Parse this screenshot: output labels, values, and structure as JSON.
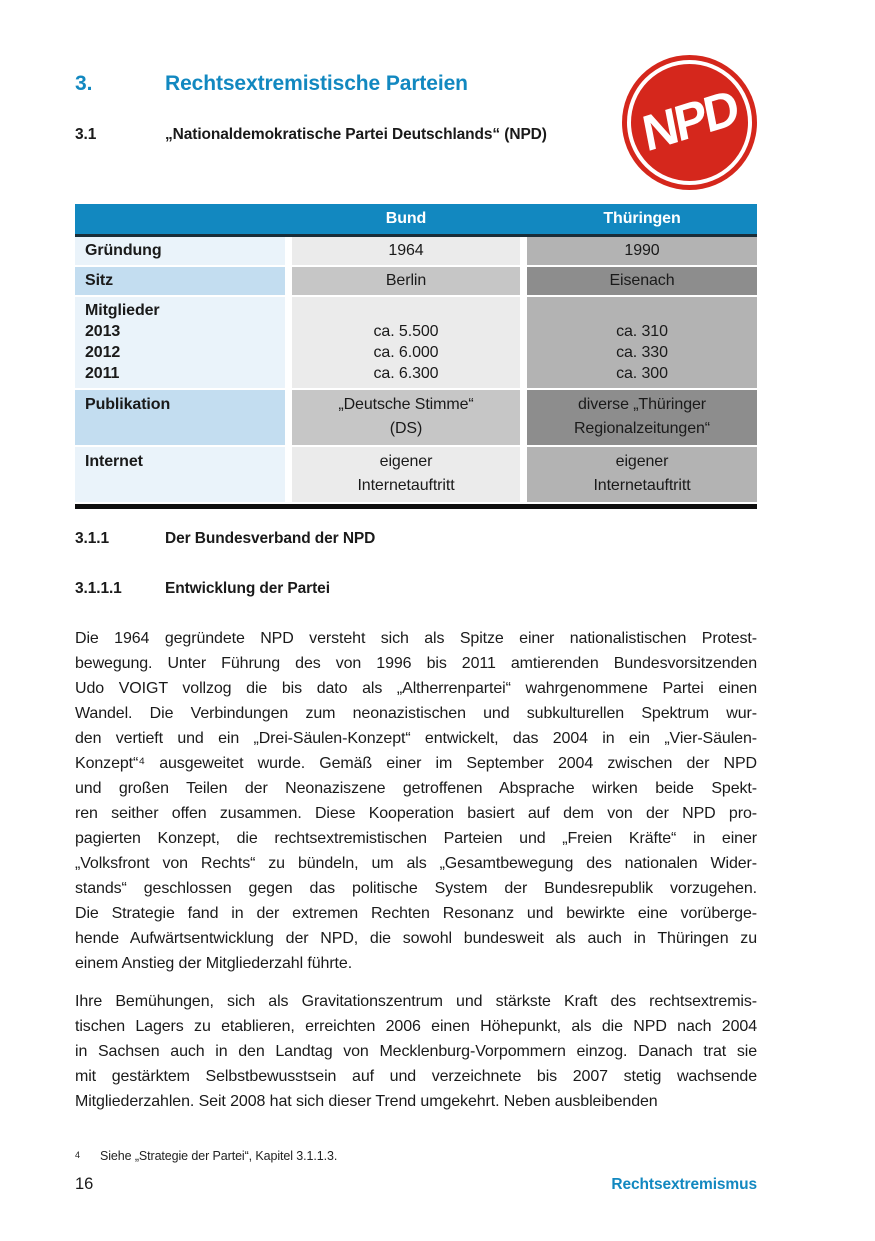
{
  "colors": {
    "blue": "#1288c0",
    "navy": "#1a2d38",
    "red": "#d5271c",
    "lab_light": "#eaf3fa",
    "lab_dark": "#c3ddf0",
    "bund_light": "#ebebeb",
    "bund_dark": "#c6c6c6",
    "th_light": "#b3b3b3",
    "th_dark": "#8d8d8d"
  },
  "title": {
    "number": "3.",
    "text": "Rechtsextremistische Parteien"
  },
  "subtitle": {
    "number": "3.1",
    "text": "„Nationaldemokratische Partei Deutschlands“ (NPD)"
  },
  "logo": {
    "text": "NPD"
  },
  "table": {
    "columns": [
      "Bund",
      "Thüringen"
    ],
    "rows": [
      {
        "label": [
          "Gründung"
        ],
        "bund": [
          "1964"
        ],
        "thueringen": [
          "1990"
        ]
      },
      {
        "label": [
          "Sitz"
        ],
        "bund": [
          "Berlin"
        ],
        "thueringen": [
          "Eisenach"
        ]
      },
      {
        "label": [
          "Mitglieder",
          "2013",
          "2012",
          "2011"
        ],
        "bund": [
          "ca. 5.500",
          "ca. 6.000",
          "ca. 6.300"
        ],
        "thueringen": [
          "ca. 310",
          "ca. 330",
          "ca. 300"
        ]
      },
      {
        "label": [
          "Publikation"
        ],
        "bund": [
          "„Deutsche Stimme“",
          "(DS)"
        ],
        "thueringen": [
          "diverse „Thüringer",
          "Regionalzeitungen“"
        ]
      },
      {
        "label": [
          "Internet"
        ],
        "bund": [
          "eigener",
          "Internetauftritt"
        ],
        "thueringen": [
          "eigener",
          "Internetauftritt"
        ]
      }
    ]
  },
  "sections": [
    {
      "number": "3.1.1",
      "text": "Der Bundesverband der NPD"
    },
    {
      "number": "3.1.1.1",
      "text": "Entwicklung der Partei"
    }
  ],
  "paragraphs": [
    [
      "Die 1964 gegründete NPD versteht sich als Spitze einer nationalistischen Protest-",
      "bewegung. Unter Führung des von 1996 bis 2011 amtierenden Bundesvorsitzenden",
      "Udo VOIGT vollzog die bis dato als „Altherrenpartei“ wahrgenommene Partei einen",
      "Wandel. Die Verbindungen zum neonazistischen und subkulturellen Spektrum wur-",
      "den vertieft und ein „Drei-Säulen-Konzept“ entwickelt, das 2004 in ein „Vier-Säulen-",
      "Konzept“⁴ ausgeweitet wurde. Gemäß einer im September 2004 zwischen der NPD",
      "und großen Teilen der Neonaziszene getroffenen Absprache wirken beide Spekt-",
      "ren seither offen zusammen. Diese Kooperation basiert auf dem von der NPD pro-",
      "pagierten Konzept, die rechtsextremistischen Parteien und „Freien Kräfte“ in einer",
      "„Volksfront von Rechts“ zu bündeln, um als „Gesamtbewegung des nationalen Wider-",
      "stands“ geschlossen gegen das politische System der Bundesrepublik vorzugehen.",
      "Die Strategie fand in der extremen Rechten Resonanz und bewirkte eine vorüberge-",
      "hende Aufwärtsentwicklung der NPD, die sowohl bundesweit als auch in Thüringen zu",
      "einem Anstieg der Mitgliederzahl führte."
    ],
    [
      "Ihre Bemühungen, sich als Gravitationszentrum und stärkste Kraft des rechtsextremis-",
      "tischen Lagers zu etablieren, erreichten 2006 einen Höhepunkt, als die NPD nach 2004",
      "in Sachsen auch in den Landtag von Mecklenburg-Vorpommern einzog. Danach trat sie",
      "mit gestärktem Selbstbewusstsein auf und verzeichnete bis 2007 stetig wachsende",
      "Mitgliederzahlen. Seit 2008 hat sich dieser Trend umgekehrt. Neben ausbleibenden"
    ]
  ],
  "footnote": {
    "marker": "4",
    "text": "Siehe „Strategie der Partei“, Kapitel 3.1.1.3."
  },
  "footer": {
    "page_number": "16",
    "label": "Rechtsextremismus"
  }
}
